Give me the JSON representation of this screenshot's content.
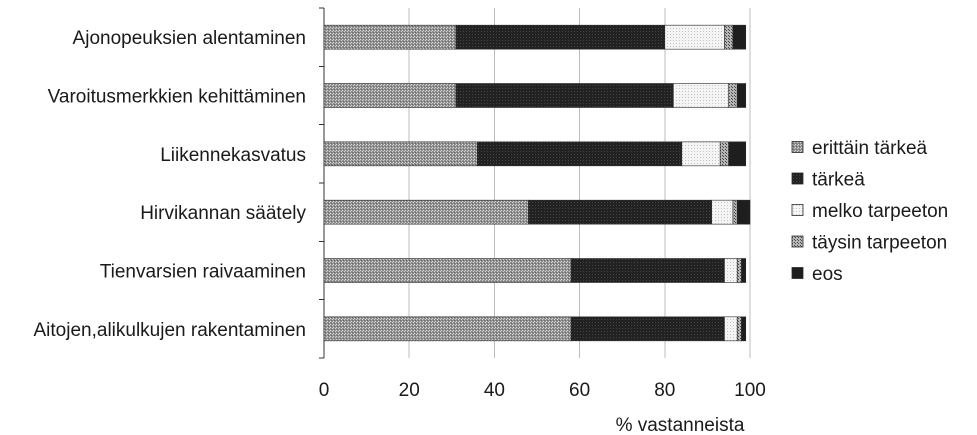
{
  "chart_data": {
    "type": "bar",
    "orientation": "horizontal",
    "stacked": true,
    "categories": [
      "Ajonopeuksien alentaminen",
      "Varoitusmerkkien kehittäminen",
      "Liikennekasvatus",
      "Hirvikannan säätely",
      "Tienvarsien raivaaminen",
      "Aitojen,alikulkujen rakentaminen"
    ],
    "series": [
      {
        "name": "erittäin tärkeä",
        "color": "#9a9a9a",
        "pattern": "dense-hatch",
        "values": [
          31,
          31,
          36,
          48,
          58,
          58
        ]
      },
      {
        "name": "tärkeä",
        "color": "#262626",
        "pattern": "solid-dark",
        "values": [
          49,
          51,
          48,
          43,
          36,
          36
        ]
      },
      {
        "name": "melko tarpeeton",
        "color": "#ececec",
        "pattern": "light-dots",
        "values": [
          14,
          13,
          9,
          5,
          3,
          3
        ]
      },
      {
        "name": "täysin tarpeeton",
        "color": "#8c8c8c",
        "pattern": "cross-hatch",
        "values": [
          2,
          2,
          2,
          1,
          1,
          1
        ]
      },
      {
        "name": "eos",
        "color": "#202020",
        "pattern": "solid",
        "values": [
          3,
          2,
          4,
          3,
          1,
          1
        ]
      }
    ],
    "xlabel": "% vastanneista",
    "ylabel": "",
    "xlim": [
      0,
      100
    ],
    "xticks": [
      0,
      20,
      40,
      60,
      80,
      100
    ],
    "grid": true,
    "legend": "right"
  }
}
